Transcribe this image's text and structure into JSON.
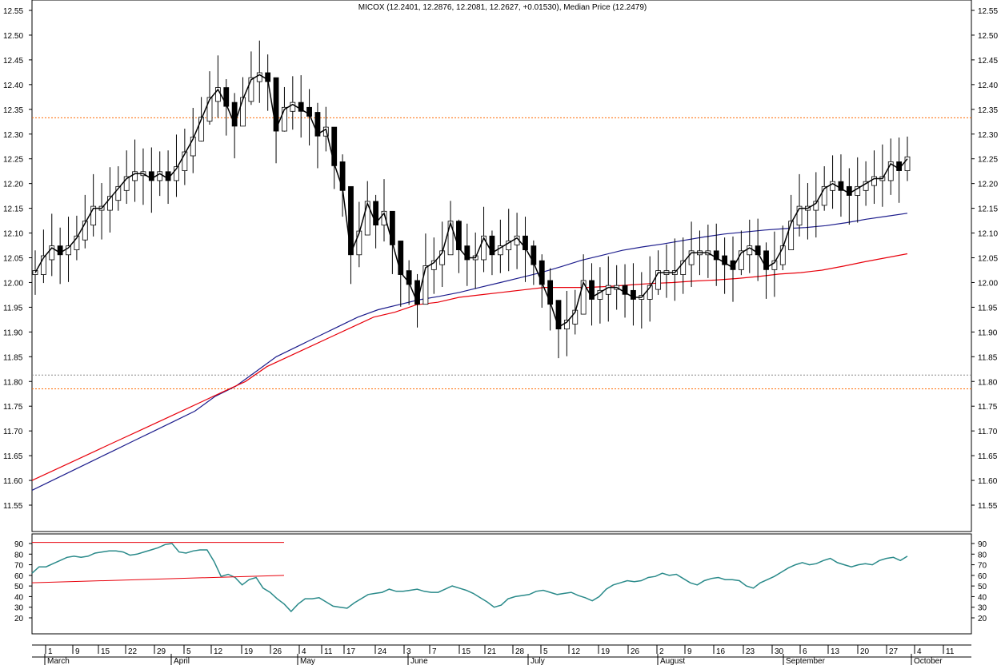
{
  "chart_data": [
    {
      "type": "candlestick",
      "title": "MICOX (12.2401, 12.2876, 12.2081, 12.2627, +0.01530), Median Price (12.2479)",
      "ylim": [
        11.5,
        12.55
      ],
      "y_ticks": [
        "11.55",
        "11.60",
        "11.65",
        "11.70",
        "11.75",
        "11.80",
        "11.85",
        "11.90",
        "11.95",
        "12.00",
        "12.05",
        "12.10",
        "12.15",
        "12.20",
        "12.25",
        "12.30",
        "12.35",
        "12.40",
        "12.45",
        "12.50",
        "12.55"
      ],
      "x_day_labels": [
        "1",
        "9",
        "15",
        "22",
        "29",
        "5",
        "12",
        "19",
        "26",
        "4",
        "11",
        "17",
        "24",
        "3",
        "7",
        "15",
        "21",
        "28",
        "5",
        "12",
        "19",
        "26",
        "2",
        "9",
        "16",
        "23",
        "30",
        "6",
        "13",
        "20",
        "27",
        "4",
        "11"
      ],
      "x_month_labels": [
        "March",
        "April",
        "May",
        "June",
        "July",
        "August",
        "September",
        "October"
      ],
      "grid": false,
      "hlines": [
        {
          "value": 12.333,
          "color": "#ff6a00",
          "style": "dotted"
        },
        {
          "value": 11.813,
          "color": "#888888",
          "style": "dotted"
        },
        {
          "value": 11.785,
          "color": "#ff6a00",
          "style": "dotted"
        }
      ],
      "series": [
        {
          "kind": "median-line",
          "color": "#000000",
          "values": [
            12.02,
            12.05,
            12.07,
            12.06,
            12.07,
            12.09,
            12.12,
            12.15,
            12.15,
            12.17,
            12.19,
            12.21,
            12.22,
            12.22,
            12.21,
            12.22,
            12.21,
            12.23,
            12.26,
            12.29,
            12.33,
            12.37,
            12.39,
            12.36,
            12.32,
            12.37,
            12.41,
            12.42,
            12.41,
            12.31,
            12.35,
            12.36,
            12.35,
            12.34,
            12.3,
            12.31,
            12.24,
            12.19,
            12.06,
            12.1,
            12.16,
            12.12,
            12.14,
            12.08,
            12.02,
            12.0,
            11.96,
            12.03,
            12.04,
            12.06,
            12.12,
            12.07,
            12.05,
            12.05,
            12.09,
            12.06,
            12.07,
            12.08,
            12.09,
            12.07,
            12.04,
            12.0,
            11.96,
            11.91,
            11.92,
            11.94,
            12.0,
            11.97,
            11.98,
            11.99,
            11.99,
            11.98,
            11.97,
            11.97,
            11.99,
            12.02,
            12.02,
            12.02,
            12.04,
            12.06,
            12.06,
            12.06,
            12.05,
            12.04,
            12.03,
            12.06,
            12.07,
            12.06,
            12.03,
            12.04,
            12.07,
            12.12,
            12.15,
            12.15,
            12.16,
            12.19,
            12.2,
            12.19,
            12.18,
            12.19,
            12.2,
            12.21,
            12.21,
            12.24,
            12.23,
            12.25
          ]
        },
        {
          "kind": "moving-average",
          "color": "#1c1c8c",
          "values": [
            11.58,
            11.6,
            11.62,
            11.64,
            11.66,
            11.68,
            11.7,
            11.72,
            11.74,
            11.77,
            11.79,
            11.82,
            11.85,
            11.87,
            11.89,
            11.91,
            11.93,
            11.945,
            11.955,
            11.965,
            11.972,
            11.98,
            11.99,
            12.0,
            12.01,
            12.02,
            12.032,
            12.045,
            12.055,
            12.065,
            12.072,
            12.078,
            12.085,
            12.092,
            12.098,
            12.102,
            12.106,
            12.109,
            12.111,
            12.115,
            12.121,
            12.128,
            12.134,
            12.14
          ]
        },
        {
          "kind": "moving-average",
          "color": "#e8000b",
          "values": [
            11.6,
            11.62,
            11.64,
            11.66,
            11.68,
            11.7,
            11.72,
            11.74,
            11.76,
            11.78,
            11.8,
            11.83,
            11.85,
            11.87,
            11.89,
            11.91,
            11.93,
            11.94,
            11.955,
            11.96,
            11.97,
            11.975,
            11.98,
            11.985,
            11.99,
            11.99,
            11.99,
            11.992,
            11.995,
            11.998,
            12.0,
            12.003,
            12.005,
            12.008,
            12.012,
            12.017,
            12.02,
            12.025,
            12.033,
            12.042,
            12.05,
            12.058
          ]
        }
      ]
    },
    {
      "type": "line",
      "ylim": [
        17,
        92
      ],
      "y_ticks": [
        "20",
        "30",
        "40",
        "50",
        "60",
        "70",
        "80",
        "90"
      ],
      "series": [
        {
          "kind": "oscillator",
          "color": "#2a8a8a",
          "values": [
            62,
            68,
            68,
            71,
            74,
            77,
            78,
            77,
            78,
            81,
            82,
            83,
            83,
            82,
            79,
            80,
            82,
            84,
            86,
            89,
            90,
            82,
            81,
            83,
            84,
            84,
            73,
            59,
            61,
            58,
            51,
            56,
            58,
            48,
            44,
            38,
            33,
            26,
            33,
            38,
            38,
            39,
            35,
            31,
            30,
            29,
            34,
            38,
            42,
            43,
            44,
            47,
            45,
            45,
            46,
            47,
            45,
            44,
            44,
            47,
            50,
            48,
            46,
            43,
            39,
            35,
            30,
            32,
            38,
            40,
            41,
            42,
            45,
            46,
            44,
            42,
            43,
            44,
            41,
            39,
            36,
            40,
            47,
            51,
            53,
            55,
            54,
            55,
            58,
            59,
            62,
            60,
            61,
            57,
            53,
            51,
            55,
            57,
            58,
            56,
            56,
            55,
            50,
            48,
            53,
            56,
            59,
            63,
            67,
            70,
            72,
            70,
            71,
            74,
            76,
            72,
            70,
            68,
            70,
            71,
            70,
            74,
            76,
            77,
            74,
            78
          ]
        },
        {
          "kind": "trendline",
          "color": "#e8000b",
          "values": [
            91,
            91
          ]
        },
        {
          "kind": "trendline",
          "color": "#e8000b",
          "values": [
            53,
            60
          ]
        }
      ]
    }
  ]
}
